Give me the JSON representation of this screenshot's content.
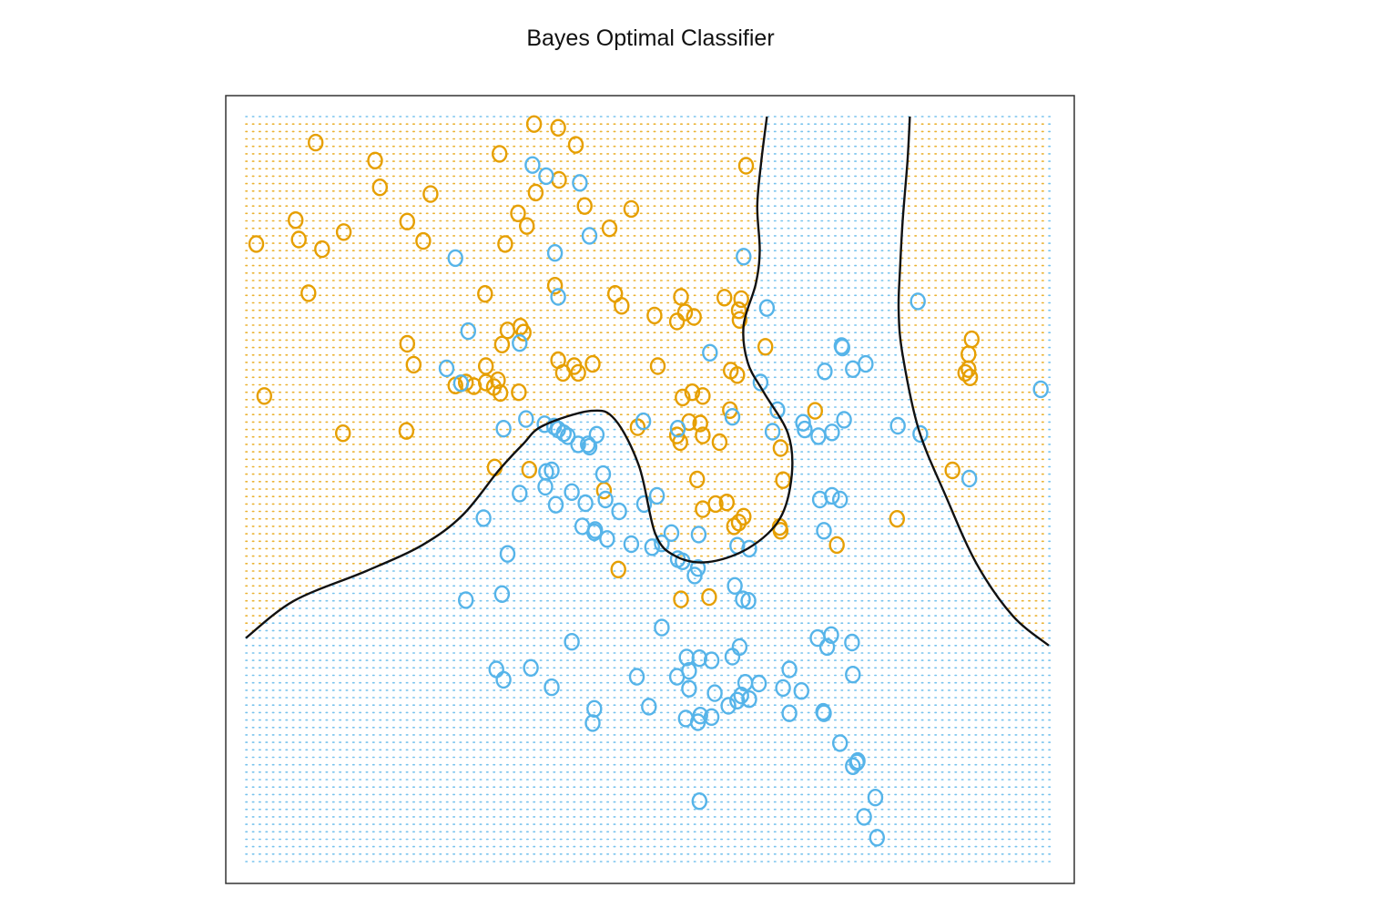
{
  "chart_data": {
    "type": "scatter",
    "title": "Bayes Optimal Classifier",
    "xlabel": "",
    "ylabel": "",
    "xlim": [
      0,
      1
    ],
    "ylim": [
      0,
      1
    ],
    "grid": false,
    "legend": "none",
    "point_marker": "o",
    "colors": {
      "orange": "#E69F00",
      "blue": "#56B4E9",
      "boundary": "#111111",
      "frame": "#333333"
    },
    "series": [
      {
        "color": "orange",
        "points": [
          [
            0.087,
            0.965
          ],
          [
            0.359,
            0.99
          ],
          [
            0.161,
            0.941
          ],
          [
            0.389,
            0.985
          ],
          [
            0.316,
            0.95
          ],
          [
            0.411,
            0.962
          ],
          [
            0.167,
            0.905
          ],
          [
            0.23,
            0.896
          ],
          [
            0.39,
            0.915
          ],
          [
            0.361,
            0.898
          ],
          [
            0.422,
            0.88
          ],
          [
            0.48,
            0.876
          ],
          [
            0.062,
            0.861
          ],
          [
            0.201,
            0.859
          ],
          [
            0.122,
            0.845
          ],
          [
            0.35,
            0.853
          ],
          [
            0.453,
            0.85
          ],
          [
            0.013,
            0.829
          ],
          [
            0.066,
            0.835
          ],
          [
            0.221,
            0.833
          ],
          [
            0.095,
            0.822
          ],
          [
            0.339,
            0.87
          ],
          [
            0.323,
            0.829
          ],
          [
            0.623,
            0.934
          ],
          [
            0.385,
            0.773
          ],
          [
            0.078,
            0.763
          ],
          [
            0.298,
            0.762
          ],
          [
            0.46,
            0.762
          ],
          [
            0.542,
            0.758
          ],
          [
            0.614,
            0.74
          ],
          [
            0.617,
            0.755
          ],
          [
            0.596,
            0.757
          ],
          [
            0.468,
            0.746
          ],
          [
            0.509,
            0.733
          ],
          [
            0.558,
            0.731
          ],
          [
            0.615,
            0.727
          ],
          [
            0.537,
            0.725
          ],
          [
            0.547,
            0.737
          ],
          [
            0.342,
            0.718
          ],
          [
            0.346,
            0.71
          ],
          [
            0.326,
            0.713
          ],
          [
            0.201,
            0.695
          ],
          [
            0.319,
            0.694
          ],
          [
            0.647,
            0.691
          ],
          [
            0.209,
            0.667
          ],
          [
            0.389,
            0.673
          ],
          [
            0.414,
            0.656
          ],
          [
            0.432,
            0.668
          ],
          [
            0.513,
            0.665
          ],
          [
            0.299,
            0.665
          ],
          [
            0.409,
            0.665
          ],
          [
            0.395,
            0.656
          ],
          [
            0.604,
            0.659
          ],
          [
            0.612,
            0.653
          ],
          [
            0.274,
            0.643
          ],
          [
            0.284,
            0.638
          ],
          [
            0.299,
            0.643
          ],
          [
            0.261,
            0.639
          ],
          [
            0.317,
            0.629
          ],
          [
            0.309,
            0.637
          ],
          [
            0.314,
            0.646
          ],
          [
            0.34,
            0.63
          ],
          [
            0.544,
            0.623
          ],
          [
            0.569,
            0.625
          ],
          [
            0.556,
            0.63
          ],
          [
            0.603,
            0.606
          ],
          [
            0.709,
            0.605
          ],
          [
            0.023,
            0.625
          ],
          [
            0.488,
            0.583
          ],
          [
            0.566,
            0.588
          ],
          [
            0.121,
            0.575
          ],
          [
            0.2,
            0.578
          ],
          [
            0.552,
            0.59
          ],
          [
            0.541,
            0.563
          ],
          [
            0.59,
            0.563
          ],
          [
            0.537,
            0.572
          ],
          [
            0.569,
            0.572
          ],
          [
            0.666,
            0.555
          ],
          [
            0.31,
            0.529
          ],
          [
            0.353,
            0.526
          ],
          [
            0.562,
            0.513
          ],
          [
            0.669,
            0.512
          ],
          [
            0.446,
            0.498
          ],
          [
            0.599,
            0.482
          ],
          [
            0.585,
            0.48
          ],
          [
            0.569,
            0.473
          ],
          [
            0.62,
            0.463
          ],
          [
            0.614,
            0.455
          ],
          [
            0.608,
            0.45
          ],
          [
            0.665,
            0.449
          ],
          [
            0.666,
            0.444
          ],
          [
            0.811,
            0.46
          ],
          [
            0.464,
            0.392
          ],
          [
            0.542,
            0.352
          ],
          [
            0.577,
            0.355
          ],
          [
            0.736,
            0.425
          ],
          [
            0.88,
            0.525
          ],
          [
            0.904,
            0.701
          ],
          [
            0.902,
            0.65
          ],
          [
            0.896,
            0.656
          ],
          [
            0.9,
            0.661
          ],
          [
            0.9,
            0.681
          ]
        ]
      },
      {
        "color": "blue",
        "points": [
          [
            0.357,
            0.935
          ],
          [
            0.374,
            0.92
          ],
          [
            0.416,
            0.911
          ],
          [
            0.428,
            0.84
          ],
          [
            0.385,
            0.817
          ],
          [
            0.261,
            0.81
          ],
          [
            0.62,
            0.812
          ],
          [
            0.389,
            0.758
          ],
          [
            0.649,
            0.743
          ],
          [
            0.277,
            0.712
          ],
          [
            0.341,
            0.696
          ],
          [
            0.578,
            0.683
          ],
          [
            0.25,
            0.662
          ],
          [
            0.268,
            0.642
          ],
          [
            0.321,
            0.581
          ],
          [
            0.349,
            0.594
          ],
          [
            0.372,
            0.587
          ],
          [
            0.384,
            0.584
          ],
          [
            0.495,
            0.591
          ],
          [
            0.538,
            0.581
          ],
          [
            0.606,
            0.597
          ],
          [
            0.641,
            0.643
          ],
          [
            0.721,
            0.658
          ],
          [
            0.756,
            0.661
          ],
          [
            0.772,
            0.668
          ],
          [
            0.742,
            0.692
          ],
          [
            0.743,
            0.69
          ],
          [
            0.837,
            0.752
          ],
          [
            0.99,
            0.634
          ],
          [
            0.662,
            0.606
          ],
          [
            0.694,
            0.589
          ],
          [
            0.696,
            0.58
          ],
          [
            0.745,
            0.593
          ],
          [
            0.812,
            0.585
          ],
          [
            0.84,
            0.574
          ],
          [
            0.437,
            0.573
          ],
          [
            0.389,
            0.58
          ],
          [
            0.396,
            0.575
          ],
          [
            0.401,
            0.571
          ],
          [
            0.426,
            0.56
          ],
          [
            0.428,
            0.557
          ],
          [
            0.414,
            0.56
          ],
          [
            0.713,
            0.571
          ],
          [
            0.73,
            0.576
          ],
          [
            0.656,
            0.577
          ],
          [
            0.381,
            0.525
          ],
          [
            0.374,
            0.523
          ],
          [
            0.373,
            0.503
          ],
          [
            0.406,
            0.496
          ],
          [
            0.341,
            0.494
          ],
          [
            0.445,
            0.52
          ],
          [
            0.448,
            0.486
          ],
          [
            0.465,
            0.47
          ],
          [
            0.512,
            0.491
          ],
          [
            0.496,
            0.48
          ],
          [
            0.73,
            0.491
          ],
          [
            0.74,
            0.486
          ],
          [
            0.715,
            0.486
          ],
          [
            0.901,
            0.514
          ],
          [
            0.296,
            0.461
          ],
          [
            0.386,
            0.479
          ],
          [
            0.423,
            0.481
          ],
          [
            0.434,
            0.442
          ],
          [
            0.419,
            0.45
          ],
          [
            0.435,
            0.445
          ],
          [
            0.45,
            0.433
          ],
          [
            0.48,
            0.426
          ],
          [
            0.53,
            0.441
          ],
          [
            0.518,
            0.427
          ],
          [
            0.612,
            0.424
          ],
          [
            0.627,
            0.42
          ],
          [
            0.72,
            0.444
          ],
          [
            0.506,
            0.422
          ],
          [
            0.564,
            0.439
          ],
          [
            0.538,
            0.406
          ],
          [
            0.544,
            0.403
          ],
          [
            0.559,
            0.384
          ],
          [
            0.563,
            0.394
          ],
          [
            0.609,
            0.37
          ],
          [
            0.326,
            0.413
          ],
          [
            0.319,
            0.359
          ],
          [
            0.619,
            0.352
          ],
          [
            0.626,
            0.35
          ],
          [
            0.274,
            0.351
          ],
          [
            0.406,
            0.295
          ],
          [
            0.518,
            0.314
          ],
          [
            0.549,
            0.274
          ],
          [
            0.552,
            0.256
          ],
          [
            0.615,
            0.288
          ],
          [
            0.712,
            0.3
          ],
          [
            0.729,
            0.304
          ],
          [
            0.724,
            0.288
          ],
          [
            0.755,
            0.294
          ],
          [
            0.622,
            0.24
          ],
          [
            0.669,
            0.233
          ],
          [
            0.692,
            0.229
          ],
          [
            0.565,
            0.273
          ],
          [
            0.58,
            0.27
          ],
          [
            0.58,
            0.194
          ],
          [
            0.548,
            0.192
          ],
          [
            0.566,
            0.196
          ],
          [
            0.612,
            0.216
          ],
          [
            0.627,
            0.218
          ],
          [
            0.677,
            0.199
          ],
          [
            0.72,
            0.199
          ],
          [
            0.74,
            0.159
          ],
          [
            0.756,
            0.128
          ],
          [
            0.761,
            0.133
          ],
          [
            0.784,
            0.086
          ],
          [
            0.762,
            0.135
          ],
          [
            0.77,
            0.06
          ],
          [
            0.565,
            0.081
          ],
          [
            0.502,
            0.208
          ],
          [
            0.584,
            0.226
          ],
          [
            0.355,
            0.26
          ],
          [
            0.381,
            0.234
          ],
          [
            0.487,
            0.248
          ],
          [
            0.537,
            0.248
          ],
          [
            0.312,
            0.258
          ],
          [
            0.321,
            0.244
          ],
          [
            0.432,
            0.186
          ],
          [
            0.434,
            0.205
          ],
          [
            0.552,
            0.232
          ],
          [
            0.563,
            0.187
          ],
          [
            0.601,
            0.209
          ],
          [
            0.617,
            0.223
          ],
          [
            0.639,
            0.239
          ],
          [
            0.606,
            0.275
          ],
          [
            0.677,
            0.258
          ],
          [
            0.756,
            0.251
          ],
          [
            0.786,
            0.032
          ],
          [
            0.719,
            0.201
          ]
        ]
      }
    ],
    "boundaries": [
      [
        [
          0.0,
          0.3
        ],
        [
          0.06,
          0.35
        ],
        [
          0.15,
          0.39
        ],
        [
          0.22,
          0.425
        ],
        [
          0.27,
          0.465
        ],
        [
          0.315,
          0.525
        ],
        [
          0.345,
          0.56
        ],
        [
          0.37,
          0.585
        ],
        [
          0.43,
          0.605
        ],
        [
          0.46,
          0.593
        ],
        [
          0.49,
          0.53
        ],
        [
          0.51,
          0.44
        ],
        [
          0.535,
          0.41
        ],
        [
          0.575,
          0.402
        ],
        [
          0.625,
          0.42
        ],
        [
          0.665,
          0.46
        ],
        [
          0.68,
          0.52
        ],
        [
          0.675,
          0.575
        ],
        [
          0.645,
          0.63
        ],
        [
          0.625,
          0.67
        ],
        [
          0.62,
          0.72
        ],
        [
          0.635,
          0.775
        ],
        [
          0.64,
          0.82
        ],
        [
          0.637,
          0.88
        ],
        [
          0.642,
          0.94
        ],
        [
          0.649,
          1.0
        ]
      ],
      [
        [
          0.827,
          1.0
        ],
        [
          0.824,
          0.94
        ],
        [
          0.818,
          0.86
        ],
        [
          0.815,
          0.8
        ],
        [
          0.813,
          0.74
        ],
        [
          0.818,
          0.68
        ],
        [
          0.838,
          0.58
        ],
        [
          0.872,
          0.49
        ],
        [
          0.91,
          0.4
        ],
        [
          0.955,
          0.33
        ],
        [
          1.0,
          0.29
        ]
      ]
    ]
  }
}
